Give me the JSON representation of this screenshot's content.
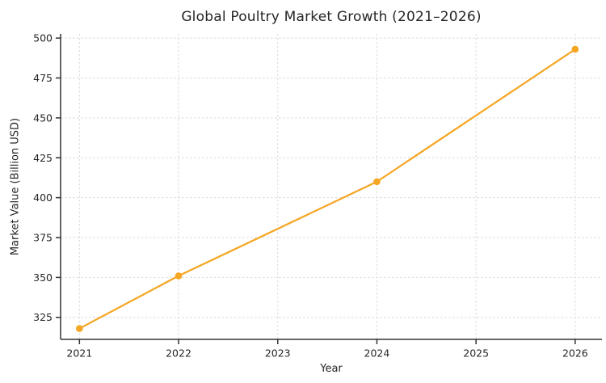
{
  "chart_data": {
    "type": "line",
    "title": "Global Poultry Market Growth (2021–2026)",
    "xlabel": "Year",
    "ylabel": "Market Value (Billion USD)",
    "x": [
      2021,
      2022,
      2024,
      2026
    ],
    "values": [
      318,
      351,
      410,
      493
    ],
    "xticks": [
      2021,
      2022,
      2023,
      2024,
      2025,
      2026
    ],
    "yticks": [
      325,
      350,
      375,
      400,
      425,
      450,
      475,
      500
    ],
    "xlim": [
      2020.81,
      2026.27
    ],
    "ylim": [
      311.2,
      502.6
    ],
    "grid": true,
    "legend": "none",
    "marker": "circle",
    "line_color": "#f5a623",
    "grid_color": "#dadada",
    "spine_color": "#333333",
    "text_color": "#262626",
    "background": "#ffffff"
  }
}
